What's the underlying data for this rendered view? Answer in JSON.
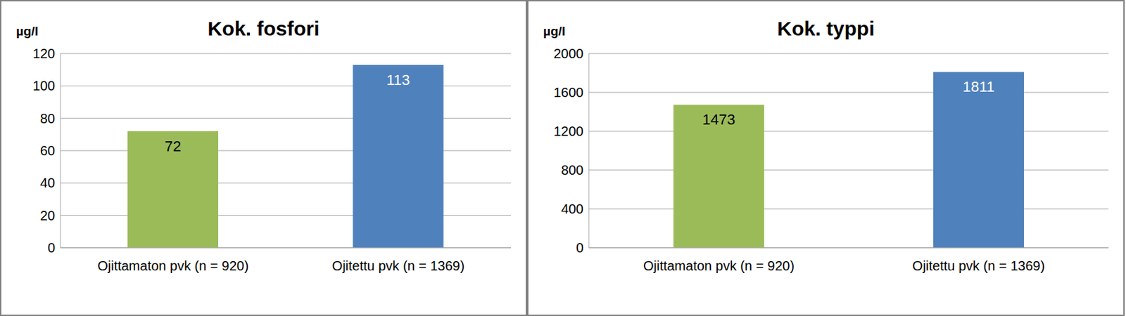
{
  "chart_data": [
    {
      "type": "bar",
      "title": "Kok. fosfori",
      "ylabel": "µg/l",
      "categories": [
        "Ojittamaton pvk (n = 920)",
        "Ojitettu pvk (n = 1369)"
      ],
      "values": [
        72,
        113
      ],
      "colors": [
        "#9bbb59",
        "#4f81bd"
      ],
      "ylim": [
        0,
        120
      ],
      "yticks": [
        0,
        20,
        40,
        60,
        80,
        100,
        120
      ],
      "grid": true,
      "data_labels": true
    },
    {
      "type": "bar",
      "title": "Kok. typpi",
      "ylabel": "µg/l",
      "categories": [
        "Ojittamaton pvk (n = 920)",
        "Ojitettu pvk (n = 1369)"
      ],
      "values": [
        1473,
        1811
      ],
      "colors": [
        "#9bbb59",
        "#4f81bd"
      ],
      "ylim": [
        0,
        2000
      ],
      "yticks": [
        0,
        400,
        800,
        1200,
        1600,
        2000
      ],
      "grid": true,
      "data_labels": true
    }
  ]
}
